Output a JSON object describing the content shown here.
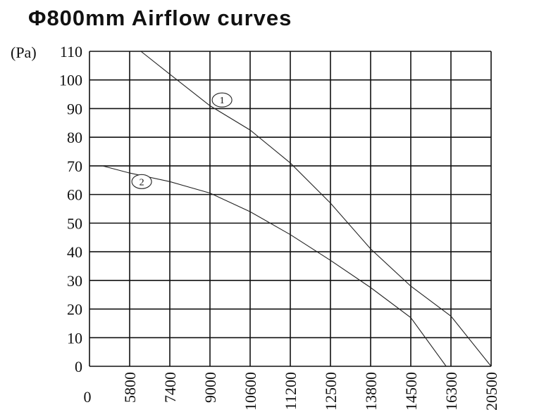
{
  "chart_data": {
    "type": "line",
    "title": "Φ800mm Airflow curves",
    "ylabel": "(Pa)",
    "xlabel": "",
    "x_zero_label": "0",
    "categories": [
      "5800",
      "7400",
      "9000",
      "10600",
      "11200",
      "12500",
      "13800",
      "14500",
      "16300",
      "20500"
    ],
    "yticks": [
      0,
      10,
      20,
      30,
      40,
      50,
      60,
      70,
      80,
      90,
      100,
      110
    ],
    "ylim": [
      0,
      110
    ],
    "grid": true,
    "series": [
      {
        "name": "1",
        "points": [
          [
            1.28,
            110
          ],
          [
            2,
            102
          ],
          [
            3,
            91
          ],
          [
            4,
            82.5
          ],
          [
            5,
            71
          ],
          [
            6,
            57
          ],
          [
            7,
            41
          ],
          [
            8,
            28
          ],
          [
            9,
            17.5
          ],
          [
            10,
            0
          ]
        ]
      },
      {
        "name": "2",
        "points": [
          [
            0.32,
            70
          ],
          [
            1,
            67.5
          ],
          [
            2,
            64.5
          ],
          [
            3,
            60.5
          ],
          [
            4,
            54
          ],
          [
            5,
            46
          ],
          [
            6,
            37
          ],
          [
            7,
            27.5
          ],
          [
            8,
            17
          ],
          [
            8.88,
            0
          ]
        ]
      }
    ],
    "annotations": [
      {
        "text": "1",
        "series": "1",
        "at": [
          3.3,
          93
        ]
      },
      {
        "text": "2",
        "series": "2",
        "at": [
          1.3,
          64.5
        ]
      }
    ]
  }
}
